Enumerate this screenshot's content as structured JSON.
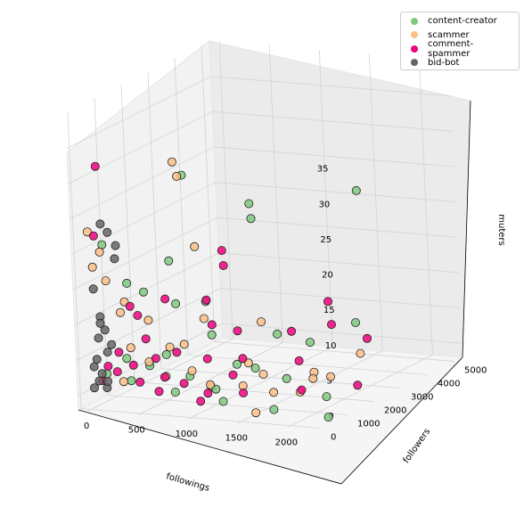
{
  "chart_data": {
    "type": "scatter",
    "projection": "3d",
    "xlabel": "followings",
    "ylabel": "followers",
    "zlabel": "muters",
    "xlim": [
      -100,
      2300
    ],
    "ylim": [
      -100,
      5300
    ],
    "zlim": [
      -2,
      40
    ],
    "xticks": [
      "0",
      "500",
      "1000",
      "1500",
      "2000"
    ],
    "yticks": [
      "0",
      "1000",
      "2000",
      "3000",
      "4000",
      "5000"
    ],
    "zticks": [
      "0",
      "5",
      "10",
      "15",
      "20",
      "25",
      "30",
      "35"
    ],
    "grid": true,
    "legend_position": "top-right",
    "series": [
      {
        "name": "content-creator",
        "color": "#7fc97f",
        "points": [
          [
            120,
            230,
            21
          ],
          [
            600,
            1500,
            29
          ],
          [
            1500,
            4600,
            22
          ],
          [
            800,
            3200,
            22
          ],
          [
            950,
            2700,
            21
          ],
          [
            600,
            900,
            18
          ],
          [
            250,
            600,
            15
          ],
          [
            420,
            580,
            14
          ],
          [
            650,
            900,
            12
          ],
          [
            870,
            1200,
            12
          ],
          [
            1000,
            900,
            8
          ],
          [
            1300,
            2200,
            6
          ],
          [
            1600,
            2300,
            5
          ],
          [
            1900,
            2900,
            7
          ],
          [
            2180,
            700,
            1
          ],
          [
            2300,
            300,
            -1
          ],
          [
            1450,
            800,
            4
          ],
          [
            1350,
            500,
            5
          ],
          [
            1150,
            250,
            2
          ],
          [
            1650,
            1200,
            2
          ],
          [
            700,
            300,
            6
          ],
          [
            500,
            400,
            4
          ],
          [
            300,
            300,
            5
          ],
          [
            150,
            100,
            3
          ],
          [
            1700,
            500,
            -1
          ],
          [
            900,
            400,
            3
          ],
          [
            1100,
            600,
            1
          ],
          [
            350,
            250,
            2
          ],
          [
            800,
            200,
            1
          ],
          [
            1250,
            300,
            0
          ]
        ]
      },
      {
        "name": "scammer",
        "color": "#fdc086",
        "points": [
          [
            20,
            80,
            23
          ],
          [
            100,
            200,
            20
          ],
          [
            580,
            1400,
            29
          ],
          [
            540,
            1400,
            31
          ],
          [
            700,
            1500,
            19
          ],
          [
            50,
            100,
            18
          ],
          [
            150,
            200,
            16
          ],
          [
            300,
            300,
            13
          ],
          [
            900,
            1000,
            10
          ],
          [
            1200,
            2000,
            8
          ],
          [
            2100,
            2300,
            4
          ],
          [
            2120,
            1100,
            3
          ],
          [
            1900,
            1300,
            3
          ],
          [
            1750,
            1800,
            1
          ],
          [
            1500,
            900,
            3
          ],
          [
            1300,
            1100,
            4
          ],
          [
            1100,
            400,
            2
          ],
          [
            400,
            100,
            7
          ],
          [
            550,
            200,
            5
          ],
          [
            700,
            250,
            3
          ],
          [
            300,
            150,
            2
          ],
          [
            950,
            300,
            4
          ],
          [
            1400,
            500,
            2
          ],
          [
            1650,
            700,
            1
          ],
          [
            800,
            600,
            7
          ],
          [
            450,
            600,
            10
          ],
          [
            200,
            500,
            11
          ],
          [
            1600,
            200,
            -1
          ],
          [
            2000,
            400,
            2
          ],
          [
            600,
            800,
            6
          ]
        ]
      },
      {
        "name": "comment-spammer",
        "color": "#f0027f",
        "points": [
          [
            80,
            260,
            32
          ],
          [
            20,
            300,
            22
          ],
          [
            1000,
            1400,
            19
          ],
          [
            900,
            1800,
            16
          ],
          [
            850,
            1300,
            12
          ],
          [
            1500,
            2000,
            7
          ],
          [
            1850,
            2200,
            8
          ],
          [
            1900,
            3300,
            4
          ],
          [
            2250,
            1600,
            1
          ],
          [
            1850,
            1000,
            1
          ],
          [
            1400,
            500,
            1
          ],
          [
            1100,
            300,
            1
          ],
          [
            700,
            200,
            3
          ],
          [
            500,
            300,
            8
          ],
          [
            400,
            400,
            11
          ],
          [
            300,
            500,
            12
          ],
          [
            250,
            200,
            6
          ],
          [
            150,
            150,
            4
          ],
          [
            600,
            700,
            13
          ],
          [
            1000,
            700,
            5
          ],
          [
            1700,
            1500,
            4
          ],
          [
            1300,
            900,
            5
          ],
          [
            1150,
            1300,
            8
          ],
          [
            1550,
            3200,
            9
          ],
          [
            450,
            200,
            2
          ],
          [
            750,
            500,
            6
          ],
          [
            950,
            1100,
            9
          ],
          [
            650,
            150,
            1
          ],
          [
            850,
            350,
            2
          ],
          [
            1250,
            700,
            3
          ],
          [
            100,
            100,
            2
          ],
          [
            200,
            300,
            3
          ],
          [
            350,
            350,
            4
          ],
          [
            550,
            450,
            5
          ],
          [
            1050,
            200,
            0
          ]
        ]
      },
      {
        "name": "bid-bot",
        "color": "#666666",
        "points": [
          [
            120,
            200,
            24
          ],
          [
            200,
            150,
            23
          ],
          [
            250,
            250,
            21
          ],
          [
            220,
            300,
            19
          ],
          [
            60,
            60,
            15
          ],
          [
            100,
            120,
            11
          ],
          [
            120,
            200,
            9
          ],
          [
            80,
            100,
            8
          ],
          [
            150,
            150,
            6
          ],
          [
            60,
            80,
            5
          ],
          [
            100,
            100,
            3
          ],
          [
            80,
            60,
            2
          ],
          [
            140,
            120,
            1
          ],
          [
            40,
            40,
            4
          ],
          [
            180,
            200,
            7
          ],
          [
            30,
            50,
            1
          ],
          [
            90,
            150,
            10
          ],
          [
            160,
            80,
            2
          ]
        ]
      }
    ]
  }
}
